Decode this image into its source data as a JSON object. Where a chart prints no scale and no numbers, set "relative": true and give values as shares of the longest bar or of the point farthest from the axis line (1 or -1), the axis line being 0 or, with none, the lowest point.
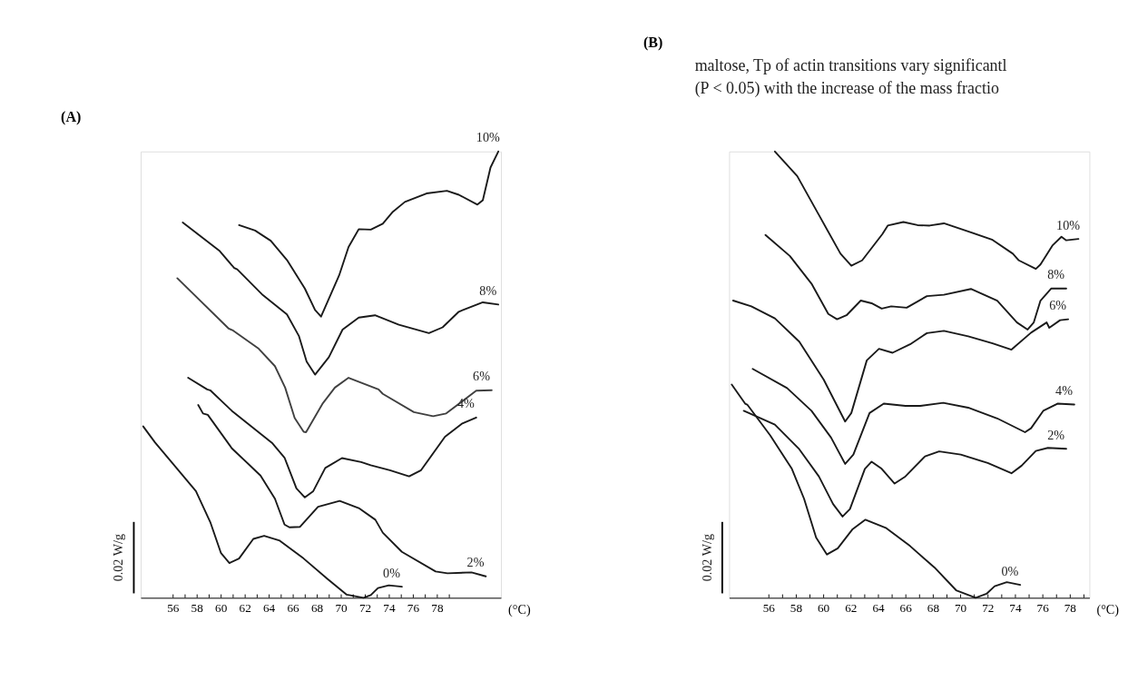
{
  "chart_data": [
    {
      "type": "line",
      "title": "(A)",
      "xlabel": "(°C)",
      "relative": true,
      "grid": false,
      "legend": false,
      "marker": "none",
      "line_style": "solid",
      "xlim": [
        53.3,
        83.3
      ],
      "xticks": [
        56,
        {
          "value": 57,
          "label": null
        },
        58,
        {
          "value": 59,
          "label": null
        },
        60,
        {
          "value": 61,
          "label": null
        },
        62,
        {
          "value": 63,
          "label": null
        },
        64,
        {
          "value": 65,
          "label": null
        },
        66,
        {
          "value": 67,
          "label": null
        },
        68,
        {
          "value": 69,
          "label": null
        },
        70,
        {
          "value": 71,
          "label": null
        },
        72,
        {
          "value": 73,
          "label": null
        },
        74,
        {
          "value": 75,
          "label": null
        },
        76,
        {
          "value": 77,
          "label": null
        },
        78,
        {
          "value": 79,
          "label": null
        }
      ],
      "annotations": [
        "0.02 W/g"
      ],
      "series": [
        {
          "name": "10%",
          "color": "#1a1a1a",
          "x": [
            61.49,
            62.83,
            64.13,
            65.48,
            66.97,
            67.82,
            68.32,
            69.82,
            70.61,
            71.46,
            72.46,
            73.46,
            74.3,
            75.3,
            77.1,
            78.8,
            79.79,
            81.34,
            81.79,
            82.43,
            83.08
          ],
          "values": [
            0.835,
            0.823,
            0.8,
            0.757,
            0.693,
            0.645,
            0.63,
            0.722,
            0.786,
            0.826,
            0.825,
            0.838,
            0.865,
            0.887,
            0.906,
            0.912,
            0.903,
            0.881,
            0.891,
            0.964,
            1.0
          ]
        },
        {
          "name": "8%",
          "color": "#1a1a1a",
          "x": [
            56.8,
            59.84,
            61.09,
            61.34,
            63.48,
            65.48,
            66.47,
            67.12,
            67.82,
            68.97,
            70.11,
            71.46,
            72.81,
            74.8,
            77.3,
            78.44,
            79.79,
            81.79,
            83.08
          ],
          "values": [
            0.841,
            0.778,
            0.739,
            0.736,
            0.678,
            0.635,
            0.587,
            0.529,
            0.5,
            0.539,
            0.601,
            0.628,
            0.633,
            0.612,
            0.593,
            0.606,
            0.641,
            0.662,
            0.657
          ]
        },
        {
          "name": "6%",
          "color": "#404040",
          "x": [
            56.35,
            60.64,
            60.99,
            63.13,
            64.48,
            65.33,
            66.12,
            66.87,
            67.07,
            68.47,
            69.47,
            70.61,
            73.11,
            73.46,
            76.05,
            77.65,
            78.74,
            81.24,
            82.53
          ],
          "values": [
            0.716,
            0.603,
            0.599,
            0.558,
            0.519,
            0.471,
            0.403,
            0.372,
            0.371,
            0.436,
            0.471,
            0.493,
            0.467,
            0.457,
            0.416,
            0.407,
            0.413,
            0.464,
            0.465
          ]
        },
        {
          "name": "4%",
          "color": "#1a1a1a",
          "x": [
            57.25,
            58.84,
            59.09,
            60.89,
            64.28,
            65.28,
            66.27,
            66.97,
            67.67,
            68.67,
            70.06,
            71.66,
            72.46,
            74.05,
            75.65,
            76.65,
            78.64,
            80.04,
            81.24
          ],
          "values": [
            0.493,
            0.467,
            0.465,
            0.419,
            0.346,
            0.314,
            0.245,
            0.225,
            0.239,
            0.291,
            0.313,
            0.304,
            0.297,
            0.286,
            0.272,
            0.286,
            0.361,
            0.39,
            0.404
          ]
        },
        {
          "name": "2%",
          "color": "#1a1a1a",
          "x": [
            58.09,
            58.49,
            58.89,
            60.89,
            63.28,
            64.48,
            65.28,
            65.69,
            66.57,
            68.07,
            69.87,
            71.46,
            72.84,
            73.46,
            75.05,
            77.86,
            78.85,
            80.85,
            82.04
          ],
          "values": [
            0.432,
            0.413,
            0.41,
            0.335,
            0.274,
            0.222,
            0.164,
            0.158,
            0.159,
            0.204,
            0.217,
            0.201,
            0.175,
            0.146,
            0.103,
            0.059,
            0.055,
            0.057,
            0.048
          ]
        },
        {
          "name": "0%",
          "color": "#1a1a1a",
          "x": [
            53.51,
            54.5,
            57.9,
            59.09,
            59.99,
            60.69,
            61.49,
            62.68,
            63.58,
            64.88,
            66.87,
            68.87,
            70.46,
            71.86,
            72.46,
            73.06,
            73.96,
            75.05
          ],
          "values": [
            0.384,
            0.348,
            0.239,
            0.17,
            0.1,
            0.078,
            0.088,
            0.132,
            0.139,
            0.128,
            0.088,
            0.042,
            0.007,
            0.0,
            0.006,
            0.022,
            0.028,
            0.025
          ]
        }
      ]
    },
    {
      "type": "line",
      "title": "(B)",
      "xlabel": "(°C)",
      "relative": true,
      "grid": false,
      "legend": false,
      "marker": "none",
      "line_style": "solid",
      "xlim": [
        53.1,
        79.4
      ],
      "xticks": [
        56,
        {
          "value": 57,
          "label": null
        },
        58,
        {
          "value": 59,
          "label": null
        },
        60,
        {
          "value": 61,
          "label": null
        },
        62,
        {
          "value": 63,
          "label": null
        },
        64,
        {
          "value": 65,
          "label": null
        },
        66,
        {
          "value": 67,
          "label": null
        },
        68,
        {
          "value": 69,
          "label": null
        },
        70,
        {
          "value": 71,
          "label": null
        },
        72,
        {
          "value": 73,
          "label": null
        },
        74,
        {
          "value": 75,
          "label": null
        },
        76,
        {
          "value": 77,
          "label": null
        },
        78,
        {
          "value": 79,
          "label": null
        }
      ],
      "annotations": [
        "0.02 W/g",
        "maltose, Tp of actin transitions vary significantl",
        "(P < 0.05) with the increase of the mass fractio"
      ],
      "series": [
        {
          "name": "10%",
          "color": "#1a1a1a",
          "x": [
            56.44,
            58.07,
            59.65,
            61.23,
            62.02,
            62.81,
            64.29,
            64.68,
            65.82,
            66.85,
            67.74,
            68.78,
            70.55,
            72.33,
            73.81,
            74.25,
            75.49,
            75.83,
            76.72,
            77.36,
            77.71,
            78.6
          ],
          "values": [
            1.0,
            0.945,
            0.858,
            0.771,
            0.744,
            0.756,
            0.815,
            0.834,
            0.842,
            0.835,
            0.834,
            0.839,
            0.821,
            0.802,
            0.771,
            0.756,
            0.737,
            0.747,
            0.79,
            0.809,
            0.801,
            0.804
          ]
        },
        {
          "name": "8%",
          "color": "#1a1a1a",
          "x": [
            55.75,
            57.53,
            59.11,
            60.34,
            60.98,
            61.67,
            62.71,
            63.5,
            64.24,
            64.93,
            66.06,
            67.54,
            68.78,
            70.75,
            72.67,
            74.11,
            74.89,
            75.34,
            75.83,
            76.62,
            77.71
          ],
          "values": [
            0.813,
            0.766,
            0.704,
            0.636,
            0.624,
            0.633,
            0.666,
            0.66,
            0.648,
            0.653,
            0.65,
            0.676,
            0.679,
            0.692,
            0.666,
            0.617,
            0.601,
            0.617,
            0.666,
            0.693,
            0.693
          ]
        },
        {
          "name": "6%",
          "color": "#1a1a1a",
          "x": [
            53.39,
            54.72,
            56.44,
            58.22,
            60.0,
            61.57,
            62.02,
            63.15,
            64.04,
            65.03,
            66.31,
            67.54,
            68.78,
            70.55,
            72.33,
            73.71,
            75.14,
            76.28,
            76.47,
            77.26,
            77.85
          ],
          "values": [
            0.666,
            0.653,
            0.626,
            0.574,
            0.489,
            0.395,
            0.414,
            0.532,
            0.558,
            0.549,
            0.568,
            0.593,
            0.598,
            0.586,
            0.57,
            0.556,
            0.594,
            0.617,
            0.605,
            0.622,
            0.624
          ]
        },
        {
          "name": "4%",
          "color": "#1a1a1a",
          "x": [
            54.82,
            57.33,
            59.11,
            60.54,
            61.57,
            62.17,
            63.35,
            64.39,
            65.97,
            67.05,
            68.73,
            70.55,
            72.67,
            74.7,
            75.14,
            76.03,
            77.07,
            78.3
          ],
          "values": [
            0.513,
            0.47,
            0.419,
            0.359,
            0.3,
            0.321,
            0.414,
            0.435,
            0.43,
            0.43,
            0.437,
            0.426,
            0.402,
            0.371,
            0.38,
            0.419,
            0.435,
            0.433
          ]
        },
        {
          "name": "2%",
          "color": "#1a1a1a",
          "x": [
            54.17,
            56.44,
            58.22,
            59.65,
            60.69,
            61.38,
            61.92,
            63.01,
            63.5,
            64.24,
            65.18,
            65.97,
            67.4,
            68.43,
            70.01,
            71.98,
            73.71,
            74.45,
            75.49,
            76.37,
            77.71
          ],
          "values": [
            0.419,
            0.388,
            0.333,
            0.272,
            0.21,
            0.182,
            0.199,
            0.289,
            0.305,
            0.289,
            0.256,
            0.272,
            0.317,
            0.328,
            0.321,
            0.302,
            0.279,
            0.296,
            0.329,
            0.336,
            0.334
          ]
        },
        {
          "name": "0%",
          "color": "#1a1a1a",
          "x": [
            53.29,
            54.27,
            54.42,
            56.1,
            57.68,
            58.57,
            59.45,
            60.24,
            61.03,
            62.12,
            63.05,
            64.58,
            66.31,
            68.09,
            69.67,
            71.1,
            71.89,
            72.48,
            73.37,
            74.35
          ],
          "values": [
            0.478,
            0.435,
            0.433,
            0.364,
            0.289,
            0.222,
            0.135,
            0.097,
            0.111,
            0.154,
            0.175,
            0.156,
            0.116,
            0.068,
            0.017,
            0.0,
            0.009,
            0.026,
            0.035,
            0.029
          ]
        }
      ]
    }
  ]
}
